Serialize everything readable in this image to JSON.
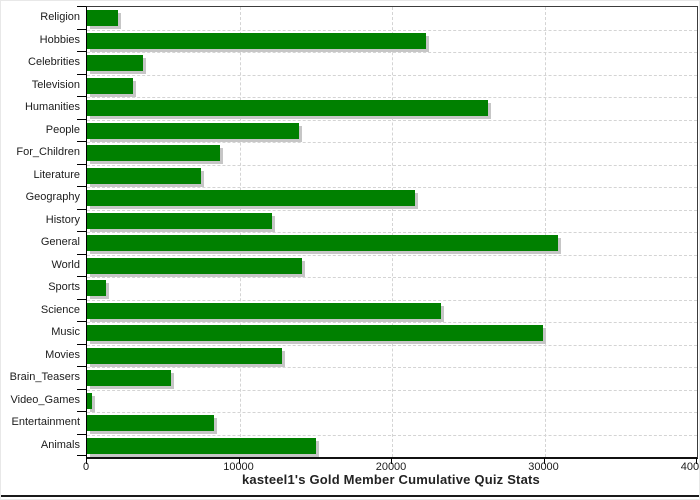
{
  "chart": {
    "bar_color": "#008000",
    "bar_shadow_color": "#c6c6c6",
    "grid_color": "#d4d4d4",
    "axis_color": "#000000",
    "text_color": "#1c1c1c",
    "background_color": "#ffffff"
  },
  "chart_data": {
    "type": "bar",
    "orientation": "horizontal",
    "title": "kasteel1's Gold Member Cumulative Quiz Stats",
    "categories": [
      "Religion",
      "Hobbies",
      "Celebrities",
      "Television",
      "Humanities",
      "People",
      "For_Children",
      "Literature",
      "Geography",
      "History",
      "General",
      "World",
      "Sports",
      "Science",
      "Music",
      "Movies",
      "Brain_Teasers",
      "Video_Games",
      "Entertainment",
      "Animals"
    ],
    "values": [
      2000,
      22200,
      3700,
      3000,
      26300,
      13900,
      8700,
      7500,
      21500,
      12100,
      30900,
      14100,
      1250,
      23200,
      29900,
      12800,
      5500,
      350,
      8300,
      15000
    ],
    "xlim": [
      0,
      40000
    ],
    "x_ticks": [
      0,
      10000,
      20000,
      30000,
      40000
    ],
    "x_tick_labels": [
      "0",
      "10000",
      "20000",
      "30000",
      "40000"
    ],
    "grid": true,
    "legend_position": "none",
    "xlabel": "",
    "ylabel": ""
  }
}
